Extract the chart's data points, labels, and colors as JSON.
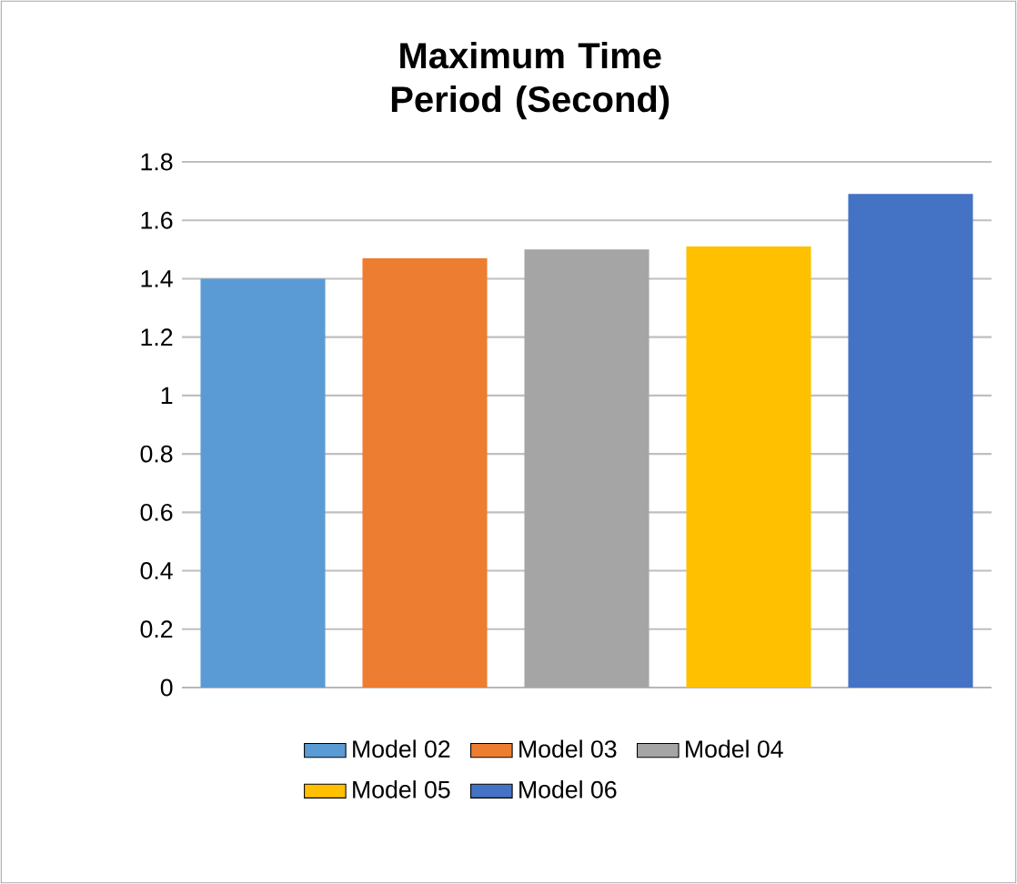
{
  "chart_data": {
    "type": "bar",
    "title": "Maximum Time Period (Second)",
    "categories": [
      null,
      null,
      null,
      null,
      null
    ],
    "series": [
      {
        "name": "Model 02",
        "color": "#5b9bd5",
        "values": [
          1.4,
          null,
          null,
          null,
          null
        ]
      },
      {
        "name": "Model 03",
        "color": "#ed7d31",
        "values": [
          null,
          1.47,
          null,
          null,
          null
        ]
      },
      {
        "name": "Model 04",
        "color": "#a5a5a5",
        "values": [
          null,
          null,
          1.5,
          null,
          null
        ]
      },
      {
        "name": "Model 05",
        "color": "#ffc000",
        "values": [
          null,
          null,
          null,
          1.51,
          null
        ]
      },
      {
        "name": "Model 06",
        "color": "#4472c4",
        "values": [
          null,
          null,
          null,
          null,
          1.69
        ]
      }
    ],
    "ylim": [
      0,
      1.8
    ],
    "yticks": [
      0,
      0.2,
      0.4,
      0.6,
      0.8,
      1,
      1.2,
      1.4,
      1.6,
      1.8
    ],
    "grid": "y",
    "legend": "bottom"
  }
}
